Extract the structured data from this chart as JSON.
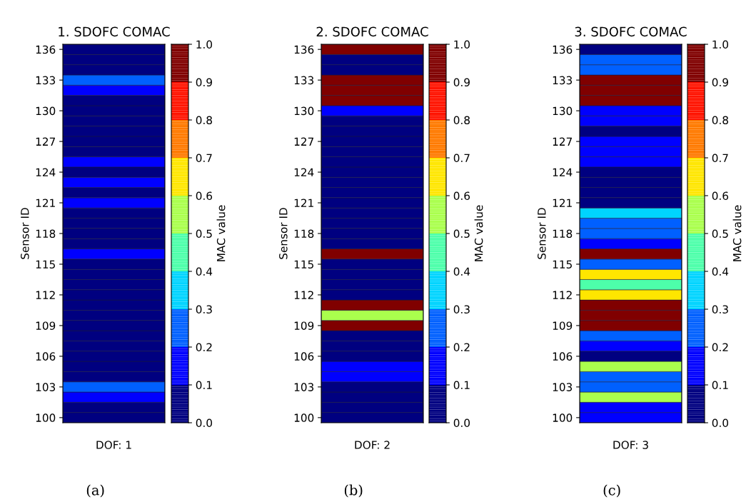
{
  "chart_data": [
    {
      "type": "heatmap",
      "title": "1. SDOFC COMAC",
      "xlabel": "DOF: 1",
      "ylabel": "Sensor ID",
      "clabel": "MAC value",
      "annotations": [
        "(a)"
      ],
      "categories": [
        null
      ],
      "y_categories": [
        "136",
        null,
        null,
        "133",
        null,
        null,
        "130",
        null,
        null,
        "127",
        null,
        null,
        "124",
        null,
        null,
        "121",
        null,
        null,
        "118",
        null,
        null,
        "115",
        null,
        null,
        "112",
        null,
        null,
        "109",
        null,
        null,
        "106",
        null,
        null,
        "103",
        null,
        null,
        "100"
      ],
      "cells": [
        [
          0.05
        ],
        [
          0.05
        ],
        [
          0.05
        ],
        [
          0.25
        ],
        [
          0.15
        ],
        [
          0.05
        ],
        [
          0.05
        ],
        [
          0.05
        ],
        [
          0.05
        ],
        [
          0.05
        ],
        [
          0.05
        ],
        [
          0.15
        ],
        [
          0.05
        ],
        [
          0.15
        ],
        [
          0.05
        ],
        [
          0.15
        ],
        [
          0.05
        ],
        [
          0.05
        ],
        [
          0.05
        ],
        [
          0.05
        ],
        [
          0.15
        ],
        [
          0.05
        ],
        [
          0.05
        ],
        [
          0.05
        ],
        [
          0.05
        ],
        [
          0.05
        ],
        [
          0.05
        ],
        [
          0.05
        ],
        [
          0.05
        ],
        [
          0.05
        ],
        [
          0.05
        ],
        [
          0.05
        ],
        [
          0.05
        ],
        [
          0.25
        ],
        [
          0.15
        ],
        [
          0.05
        ],
        [
          0.05
        ]
      ],
      "clim": [
        0,
        1
      ],
      "cticks": [
        {
          "value": 0,
          "label": "0.0"
        },
        {
          "value": 0.1,
          "label": "0.1"
        },
        {
          "value": 0.2,
          "label": "0.2"
        },
        {
          "value": 0.3,
          "label": "0.3"
        },
        {
          "value": 0.4,
          "label": "0.4"
        },
        {
          "value": 0.5,
          "label": "0.5"
        },
        {
          "value": 0.6,
          "label": "0.6"
        },
        {
          "value": 0.7,
          "label": "0.7"
        },
        {
          "value": 0.8,
          "label": "0.8"
        },
        {
          "value": 0.9,
          "label": "0.9"
        },
        {
          "value": 1,
          "label": "1.0"
        }
      ]
    },
    {
      "type": "heatmap",
      "title": "2. SDOFC COMAC",
      "xlabel": "DOF: 2",
      "ylabel": "Sensor ID",
      "clabel": "MAC value",
      "annotations": [
        "(b)"
      ],
      "categories": [
        null
      ],
      "y_categories": [
        "136",
        null,
        null,
        "133",
        null,
        null,
        "130",
        null,
        null,
        "127",
        null,
        null,
        "124",
        null,
        null,
        "121",
        null,
        null,
        "118",
        null,
        null,
        "115",
        null,
        null,
        "112",
        null,
        null,
        "109",
        null,
        null,
        "106",
        null,
        null,
        "103",
        null,
        null,
        "100"
      ],
      "cells": [
        [
          0.95
        ],
        [
          0.05
        ],
        [
          0.05
        ],
        [
          0.95
        ],
        [
          0.95
        ],
        [
          0.95
        ],
        [
          0.15
        ],
        [
          0.05
        ],
        [
          0.05
        ],
        [
          0.05
        ],
        [
          0.05
        ],
        [
          0.05
        ],
        [
          0.05
        ],
        [
          0.05
        ],
        [
          0.05
        ],
        [
          0.05
        ],
        [
          0.05
        ],
        [
          0.05
        ],
        [
          0.05
        ],
        [
          0.05
        ],
        [
          0.95
        ],
        [
          0.05
        ],
        [
          0.05
        ],
        [
          0.05
        ],
        [
          0.05
        ],
        [
          0.95
        ],
        [
          0.55
        ],
        [
          0.95
        ],
        [
          0.05
        ],
        [
          0.05
        ],
        [
          0.05
        ],
        [
          0.15
        ],
        [
          0.15
        ],
        [
          0.05
        ],
        [
          0.05
        ],
        [
          0.05
        ],
        [
          0.05
        ]
      ],
      "clim": [
        0,
        1
      ],
      "cticks": [
        {
          "value": 0,
          "label": "0.0"
        },
        {
          "value": 0.1,
          "label": "0.1"
        },
        {
          "value": 0.2,
          "label": "0.2"
        },
        {
          "value": 0.3,
          "label": "0.3"
        },
        {
          "value": 0.4,
          "label": "0.4"
        },
        {
          "value": 0.5,
          "label": "0.5"
        },
        {
          "value": 0.6,
          "label": "0.6"
        },
        {
          "value": 0.7,
          "label": "0.7"
        },
        {
          "value": 0.8,
          "label": "0.8"
        },
        {
          "value": 0.9,
          "label": "0.9"
        },
        {
          "value": 1,
          "label": "1.0"
        }
      ]
    },
    {
      "type": "heatmap",
      "title": "3. SDOFC COMAC",
      "xlabel": "DOF: 3",
      "ylabel": "Sensor ID",
      "clabel": "MAC value",
      "annotations": [
        "(c)"
      ],
      "categories": [
        null
      ],
      "y_categories": [
        "136",
        null,
        null,
        "133",
        null,
        null,
        "130",
        null,
        null,
        "127",
        null,
        null,
        "124",
        null,
        null,
        "121",
        null,
        null,
        "118",
        null,
        null,
        "115",
        null,
        null,
        "112",
        null,
        null,
        "109",
        null,
        null,
        "106",
        null,
        null,
        "103",
        null,
        null,
        "100"
      ],
      "cells": [
        [
          0.05
        ],
        [
          0.25
        ],
        [
          0.25
        ],
        [
          0.95
        ],
        [
          0.95
        ],
        [
          0.95
        ],
        [
          0.15
        ],
        [
          0.15
        ],
        [
          0.05
        ],
        [
          0.15
        ],
        [
          0.15
        ],
        [
          0.15
        ],
        [
          0.05
        ],
        [
          0.05
        ],
        [
          0.05
        ],
        [
          0.05
        ],
        [
          0.35
        ],
        [
          0.25
        ],
        [
          0.25
        ],
        [
          0.15
        ],
        [
          0.95
        ],
        [
          0.25
        ],
        [
          0.65
        ],
        [
          0.45
        ],
        [
          0.65
        ],
        [
          0.95
        ],
        [
          0.95
        ],
        [
          0.95
        ],
        [
          0.25
        ],
        [
          0.15
        ],
        [
          0.05
        ],
        [
          0.55
        ],
        [
          0.25
        ],
        [
          0.25
        ],
        [
          0.55
        ],
        [
          0.15
        ],
        [
          0.15
        ]
      ],
      "clim": [
        0,
        1
      ],
      "cticks": [
        {
          "value": 0,
          "label": "0.0"
        },
        {
          "value": 0.1,
          "label": "0.1"
        },
        {
          "value": 0.2,
          "label": "0.2"
        },
        {
          "value": 0.3,
          "label": "0.3"
        },
        {
          "value": 0.4,
          "label": "0.4"
        },
        {
          "value": 0.5,
          "label": "0.5"
        },
        {
          "value": 0.6,
          "label": "0.6"
        },
        {
          "value": 0.7,
          "label": "0.7"
        },
        {
          "value": 0.8,
          "label": "0.8"
        },
        {
          "value": 0.9,
          "label": "0.9"
        },
        {
          "value": 1,
          "label": "1.0"
        }
      ]
    }
  ]
}
